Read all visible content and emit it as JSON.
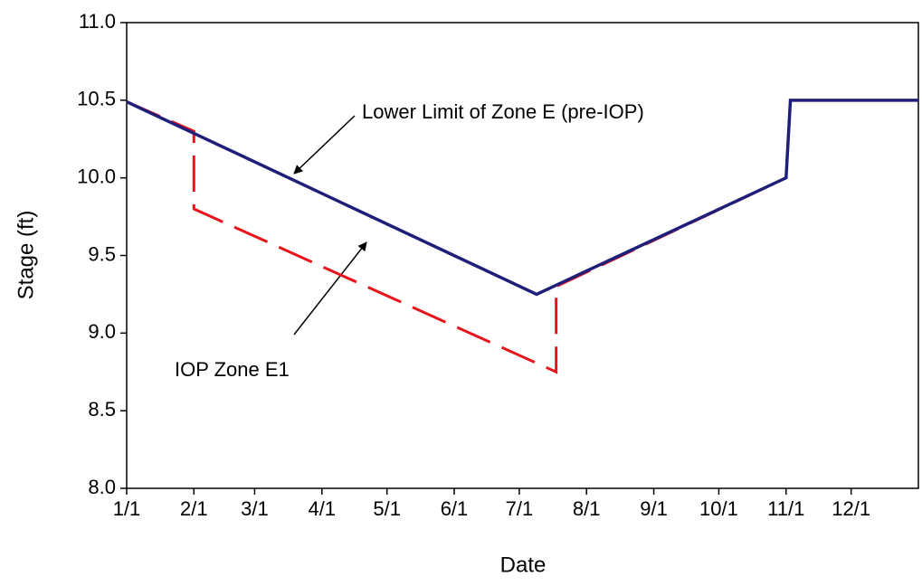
{
  "chart_data": {
    "type": "line",
    "xlabel": "Date",
    "ylabel": "Stage (ft)",
    "xlim": [
      0,
      365
    ],
    "ylim": [
      8,
      11
    ],
    "xticks": [
      {
        "value": 0,
        "label": "1/1"
      },
      {
        "value": 31,
        "label": "2/1"
      },
      {
        "value": 59,
        "label": "3/1"
      },
      {
        "value": 90,
        "label": "4/1"
      },
      {
        "value": 120,
        "label": "5/1"
      },
      {
        "value": 151,
        "label": "6/1"
      },
      {
        "value": 181,
        "label": "7/1"
      },
      {
        "value": 212,
        "label": "8/1"
      },
      {
        "value": 243,
        "label": "9/1"
      },
      {
        "value": 273,
        "label": "10/1"
      },
      {
        "value": 304,
        "label": "11/1"
      },
      {
        "value": 334,
        "label": "12/1"
      }
    ],
    "yticks": [
      {
        "value": 8,
        "label": "8.0"
      },
      8.5,
      {
        "value": 9,
        "label": "9.0"
      },
      9.5,
      {
        "value": 10,
        "label": "10.0"
      },
      10.5,
      {
        "value": 11,
        "label": "11.0"
      }
    ],
    "series": [
      {
        "name": "IOP Zone E1",
        "color": "#e8141c",
        "dash": true,
        "x": [
          0,
          31,
          31,
          198,
          198,
          304
        ],
        "values": [
          10.49,
          10.3,
          9.8,
          8.75,
          9.3,
          10.0
        ]
      },
      {
        "name": "Lower Limit of Zone E (pre-IOP)",
        "color": "#1f1f7a",
        "dash": false,
        "x": [
          0,
          189,
          304,
          306,
          365
        ],
        "values": [
          10.49,
          9.25,
          10.0,
          10.5,
          10.5
        ]
      }
    ]
  }
}
